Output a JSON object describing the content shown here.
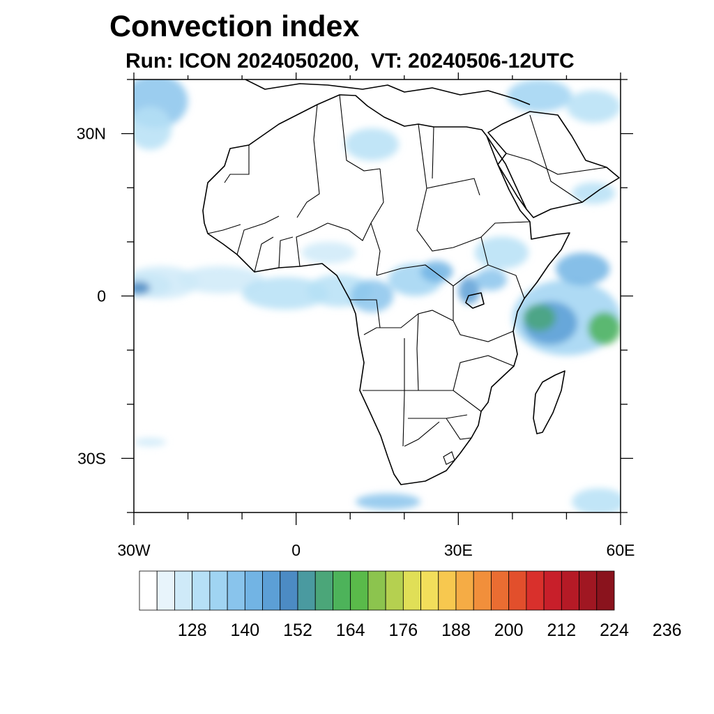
{
  "title": "Convection index",
  "subtitle": "Run: ICON 2024050200,  VT: 20240506-12UTC",
  "map": {
    "extent": {
      "lon": [
        -30,
        60
      ],
      "lat": [
        -40,
        40
      ]
    },
    "lat_labels": [
      {
        "lat": 30,
        "text": "30N"
      },
      {
        "lat": 0,
        "text": "0"
      },
      {
        "lat": -30,
        "text": "30S"
      }
    ],
    "lon_labels": [
      {
        "lon": -30,
        "text": "30W"
      },
      {
        "lon": 0,
        "text": "0"
      },
      {
        "lon": 30,
        "text": "30E"
      },
      {
        "lon": 60,
        "text": "60E"
      }
    ],
    "blobs": [
      {
        "lon": -28,
        "lat": 2,
        "rx": 5,
        "ry": 2.2,
        "level": 4
      },
      {
        "lon": -25,
        "lat": 2.5,
        "rx": 7,
        "ry": 3,
        "level": 2
      },
      {
        "lon": -29,
        "lat": 1.5,
        "rx": 2,
        "ry": 1.2,
        "level": 8
      },
      {
        "lon": -14,
        "lat": 3,
        "rx": 8,
        "ry": 2.5,
        "level": 2
      },
      {
        "lon": -2,
        "lat": 0.5,
        "rx": 8,
        "ry": 3,
        "level": 3
      },
      {
        "lon": 8,
        "lat": 1,
        "rx": 6,
        "ry": 3,
        "level": 3
      },
      {
        "lon": 14,
        "lat": 0,
        "rx": 4,
        "ry": 3,
        "level": 5
      },
      {
        "lon": 22,
        "lat": 3,
        "rx": 5,
        "ry": 3,
        "level": 4
      },
      {
        "lon": 26,
        "lat": 4.5,
        "rx": 3,
        "ry": 2,
        "level": 6
      },
      {
        "lon": 32,
        "lat": 1,
        "rx": 2,
        "ry": 2.5,
        "level": 7
      },
      {
        "lon": 36,
        "lat": 3,
        "rx": 3,
        "ry": 2,
        "level": 5
      },
      {
        "lon": 38,
        "lat": 8,
        "rx": 5,
        "ry": 3,
        "level": 3
      },
      {
        "lon": 50,
        "lat": -4,
        "rx": 10,
        "ry": 7,
        "level": 4
      },
      {
        "lon": 47,
        "lat": -5,
        "rx": 5,
        "ry": 4,
        "level": 7
      },
      {
        "lon": 57,
        "lat": -6,
        "rx": 3,
        "ry": 3,
        "level": 11
      },
      {
        "lon": 53,
        "lat": 5,
        "rx": 5,
        "ry": 3,
        "level": 6
      },
      {
        "lon": 45,
        "lat": -4,
        "rx": 3,
        "ry": 2.5,
        "level": 10
      },
      {
        "lon": -26,
        "lat": 36,
        "rx": 6,
        "ry": 5,
        "level": 5
      },
      {
        "lon": -27,
        "lat": 31,
        "rx": 4,
        "ry": 4,
        "level": 3
      },
      {
        "lon": 45,
        "lat": 37,
        "rx": 6,
        "ry": 3,
        "level": 4
      },
      {
        "lon": 55,
        "lat": 35,
        "rx": 5,
        "ry": 3,
        "level": 3
      },
      {
        "lon": 14,
        "lat": 28,
        "rx": 5,
        "ry": 3,
        "level": 3
      },
      {
        "lon": 6,
        "lat": 8,
        "rx": 5,
        "ry": 2,
        "level": 2
      },
      {
        "lon": 55,
        "lat": 19,
        "rx": 4,
        "ry": 2,
        "level": 3
      },
      {
        "lon": 17,
        "lat": -38,
        "rx": 6,
        "ry": 1.5,
        "level": 5
      },
      {
        "lon": 56,
        "lat": -38,
        "rx": 5,
        "ry": 2.5,
        "level": 3
      },
      {
        "lon": -27,
        "lat": -27,
        "rx": 3,
        "ry": 0.8,
        "level": 2
      }
    ]
  },
  "colorbar": {
    "colors": [
      "#ffffff",
      "#e8f4fb",
      "#cfeaf8",
      "#b6e0f6",
      "#a0d4f2",
      "#89c4ec",
      "#72b4e4",
      "#5c9fd6",
      "#4c8bc4",
      "#4a9aa0",
      "#4ba679",
      "#4db35a",
      "#5aba4a",
      "#8cc44e",
      "#b5d050",
      "#e0df57",
      "#f2de5b",
      "#f7c84f",
      "#f5ac45",
      "#f18f3b",
      "#ea6d32",
      "#e24f2c",
      "#d9302c",
      "#c81f2a",
      "#b51a26",
      "#a01722",
      "#8a131d"
    ],
    "labels": [
      "128",
      "140",
      "152",
      "164",
      "176",
      "188",
      "200",
      "212",
      "224",
      "236"
    ]
  }
}
